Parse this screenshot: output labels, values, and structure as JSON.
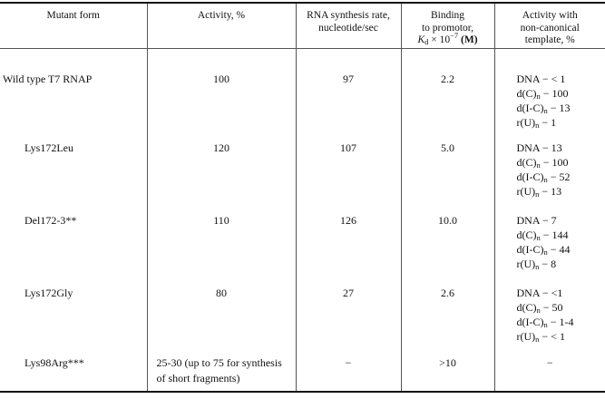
{
  "table": {
    "headers": {
      "mutant_form": "Mutant form",
      "activity": "Activity, %",
      "rna_rate_line1": "RNA synthesis rate,",
      "rna_rate_line2": "nucleotide/sec",
      "binding": {
        "line1": "Binding",
        "line2": "to promotor,",
        "symbol": "K",
        "symbol_sub": "d",
        "times": " × 10",
        "exponent": "−7",
        "unit": " (M)"
      },
      "noncanonical_line1": "Activity with",
      "noncanonical_line2": "non-canonical",
      "noncanonical_line3": "template, %"
    },
    "rows": [
      {
        "mutant": "Wild type T7 RNAP",
        "activity": "100",
        "rna_rate": "97",
        "binding": "2.2",
        "noncanonical": [
          {
            "pre": "DNA − < 1",
            "sub": "",
            "post": ""
          },
          {
            "pre": "d(C)",
            "sub": "n",
            "post": " − 100"
          },
          {
            "pre": "d(I-C)",
            "sub": "n",
            "post": " − 13"
          },
          {
            "pre": "r(U)",
            "sub": "n",
            "post": " − 1"
          }
        ]
      },
      {
        "mutant": "Lys172Leu",
        "activity": "120",
        "rna_rate": "107",
        "binding": "5.0",
        "noncanonical": [
          {
            "pre": "DNA − 13",
            "sub": "",
            "post": ""
          },
          {
            "pre": "d(C)",
            "sub": "n",
            "post": " − 100"
          },
          {
            "pre": "d(I-C)",
            "sub": "n",
            "post": " − 52"
          },
          {
            "pre": "r(U)",
            "sub": "n",
            "post": " − 13"
          }
        ]
      },
      {
        "mutant": "Del172-3**",
        "activity": "110",
        "rna_rate": "126",
        "binding": "10.0",
        "noncanonical": [
          {
            "pre": "DNA − 7",
            "sub": "",
            "post": ""
          },
          {
            "pre": "d(C)",
            "sub": "n",
            "post": " − 144"
          },
          {
            "pre": "d(I-C)",
            "sub": "n",
            "post": " − 44"
          },
          {
            "pre": "r(U)",
            "sub": "n",
            "post": " − 8"
          }
        ]
      },
      {
        "mutant": "Lys172Gly",
        "activity": "80",
        "rna_rate": "27",
        "binding": "2.6",
        "noncanonical": [
          {
            "pre": "DNA − <1",
            "sub": "",
            "post": ""
          },
          {
            "pre": "d(C)",
            "sub": "n",
            "post": " − 50"
          },
          {
            "pre": "d(I-C)",
            "sub": "n",
            "post": " − 1-4"
          },
          {
            "pre": "r(U)",
            "sub": "n",
            "post": " − < 1"
          }
        ]
      },
      {
        "mutant": "Lys98Arg***",
        "activity": "25-30 (up to 75 for synthesis of short fragments)",
        "rna_rate": "−",
        "binding": ">10",
        "noncanonical": [
          {
            "pre": "−",
            "sub": "",
            "post": ""
          }
        ]
      }
    ]
  }
}
